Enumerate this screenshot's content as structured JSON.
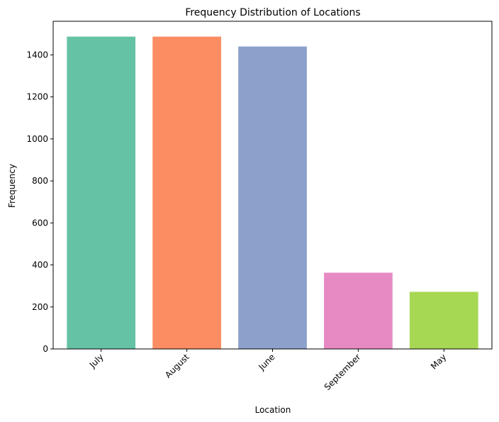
{
  "chart_data": {
    "type": "bar",
    "title": "Frequency Distribution of Locations",
    "xlabel": "Location",
    "ylabel": "Frequency",
    "categories": [
      "July",
      "August",
      "June",
      "September",
      "May"
    ],
    "values": [
      1487,
      1487,
      1440,
      363,
      272
    ],
    "colors": [
      "#66c2a5",
      "#fc8d62",
      "#8da0cb",
      "#e78ac3",
      "#a6d854"
    ],
    "ylim": [
      0,
      1560
    ],
    "yticks": [
      0,
      200,
      400,
      600,
      800,
      1000,
      1200,
      1400
    ],
    "grid": false,
    "legend": "none"
  }
}
